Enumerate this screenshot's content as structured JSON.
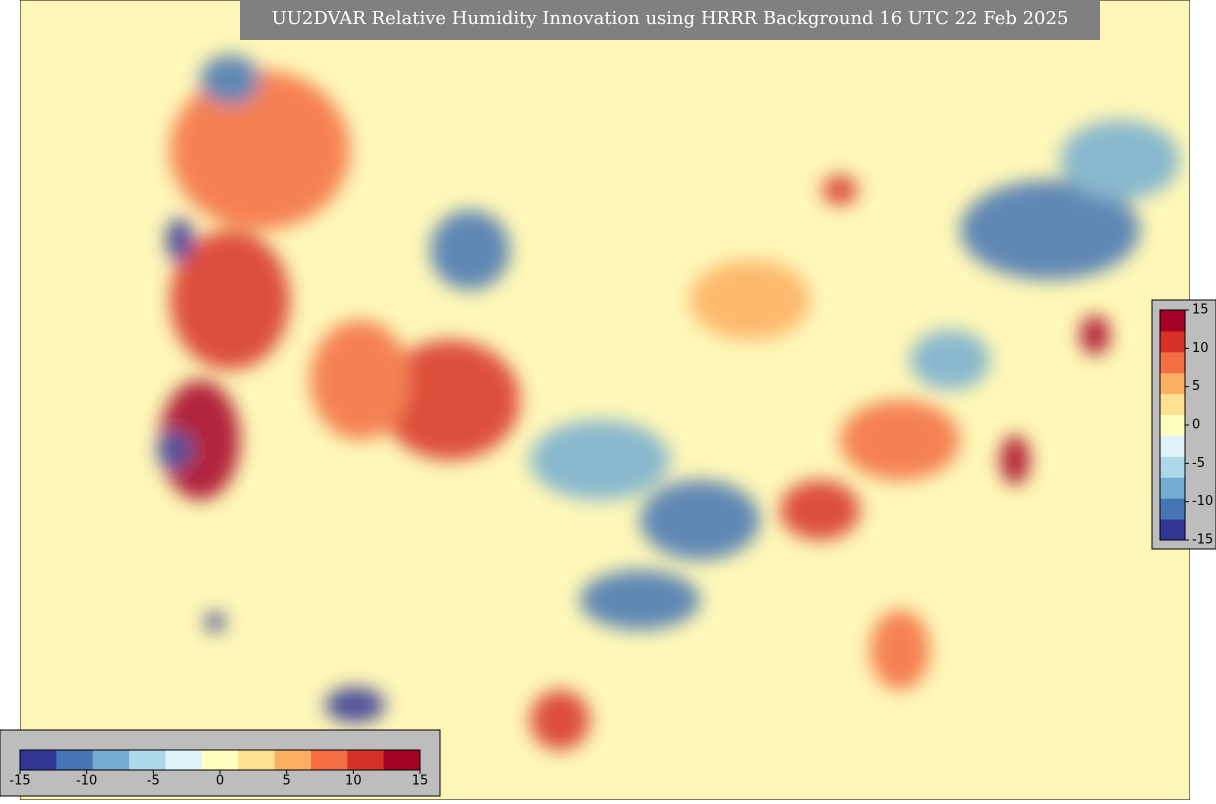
{
  "title": "UU2DVAR Relative Humidity Innovation using HRRR Background 16 UTC 22 Feb 2025",
  "colormap": [
    "#313695",
    "#4575b4",
    "#74add1",
    "#abd9e9",
    "#e0f3f8",
    "#ffffbf",
    "#fee090",
    "#fdae61",
    "#f46d43",
    "#d73027",
    "#a50026"
  ],
  "colorbars": [
    {
      "orientation": "horizontal",
      "lim": [
        -15,
        15
      ],
      "ticks": [
        -15,
        -10,
        -5,
        0,
        5,
        10,
        15
      ]
    },
    {
      "orientation": "vertical",
      "lim": [
        -15,
        15
      ],
      "ticks": [
        15,
        10,
        5,
        0,
        -5,
        -10,
        -15
      ]
    }
  ]
}
